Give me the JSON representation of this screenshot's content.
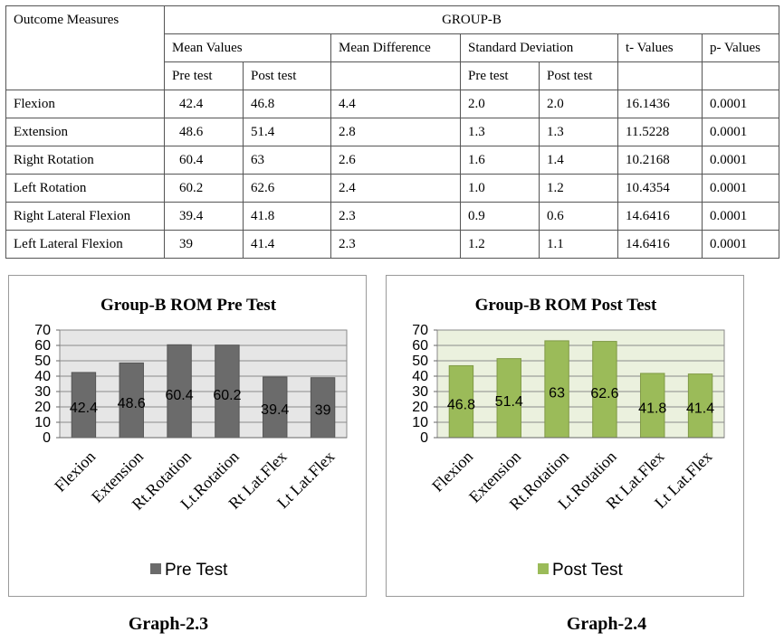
{
  "table": {
    "header": {
      "outcome": "Outcome Measures",
      "group": "GROUP-B",
      "mean_values": "Mean Values",
      "mean_difference": "Mean Difference",
      "std_dev": "Standard Deviation",
      "t_values": "t- Values",
      "p_values": "p- Values",
      "pre_test": "Pre test",
      "post_test": "Post test"
    },
    "rows": [
      {
        "measure": "Flexion",
        "pre": "42.4",
        "post": "46.8",
        "diff": "4.4",
        "sd_pre": "2.0",
        "sd_post": "2.0",
        "t": "16.1436",
        "p": "0.0001"
      },
      {
        "measure": "Extension",
        "pre": "48.6",
        "post": "51.4",
        "diff": "2.8",
        "sd_pre": "1.3",
        "sd_post": "1.3",
        "t": "11.5228",
        "p": "0.0001"
      },
      {
        "measure": "Right Rotation",
        "pre": "60.4",
        "post": "63",
        "diff": "2.6",
        "sd_pre": "1.6",
        "sd_post": "1.4",
        "t": "10.2168",
        "p": "0.0001"
      },
      {
        "measure": "Left Rotation",
        "pre": "60.2",
        "post": "62.6",
        "diff": "2.4",
        "sd_pre": "1.0",
        "sd_post": "1.2",
        "t": "10.4354",
        "p": "0.0001"
      },
      {
        "measure": "Right Lateral Flexion",
        "pre": "39.4",
        "post": "41.8",
        "diff": "2.3",
        "sd_pre": "0.9",
        "sd_post": "0.6",
        "t": "14.6416",
        "p": "0.0001"
      },
      {
        "measure": "Left Lateral Flexion",
        "pre": "39",
        "post": "41.4",
        "diff": "2.3",
        "sd_pre": "1.2",
        "sd_post": "1.1",
        "t": "14.6416",
        "p": "0.0001"
      }
    ]
  },
  "chart_data": [
    {
      "type": "bar",
      "title": "Group-B ROM Pre Test",
      "categories": [
        "Flexion",
        "Extension",
        "Rt.Rotation",
        "Lt.Rotation",
        "Rt Lat.Flex",
        "Lt Lat.Flex"
      ],
      "series": [
        {
          "name": "Pre Test",
          "values": [
            42.4,
            48.6,
            60.4,
            60.2,
            39.4,
            39
          ],
          "color": "#6b6b6b"
        }
      ],
      "data_labels": [
        "42.4",
        "48.6",
        "60.4",
        "60.2",
        "39.4",
        "39"
      ],
      "ylim": [
        0,
        70
      ],
      "yticks": [
        "0",
        "10",
        "20",
        "30",
        "40",
        "50",
        "60",
        "70"
      ],
      "grid": true,
      "plot_background": "#e6e6e6",
      "legend": "bottom",
      "caption": "Graph-2.3"
    },
    {
      "type": "bar",
      "title": "Group-B ROM Post Test",
      "categories": [
        "Flexion",
        "Extension",
        "Rt.Rotation",
        "Lt.Rotation",
        "Rt Lat.Flex",
        "Lt Lat.Flex"
      ],
      "series": [
        {
          "name": "Post Test",
          "values": [
            46.8,
            51.4,
            63,
            62.6,
            41.8,
            41.4
          ],
          "color": "#9bbb59"
        }
      ],
      "data_labels": [
        "46.8",
        "51.4",
        "63",
        "62.6",
        "41.8",
        "41.4"
      ],
      "ylim": [
        0,
        70
      ],
      "yticks": [
        "0",
        "10",
        "20",
        "30",
        "40",
        "50",
        "60",
        "70"
      ],
      "grid": true,
      "plot_background": "#ebf1de",
      "legend": "bottom",
      "caption": "Graph-2.4"
    }
  ]
}
